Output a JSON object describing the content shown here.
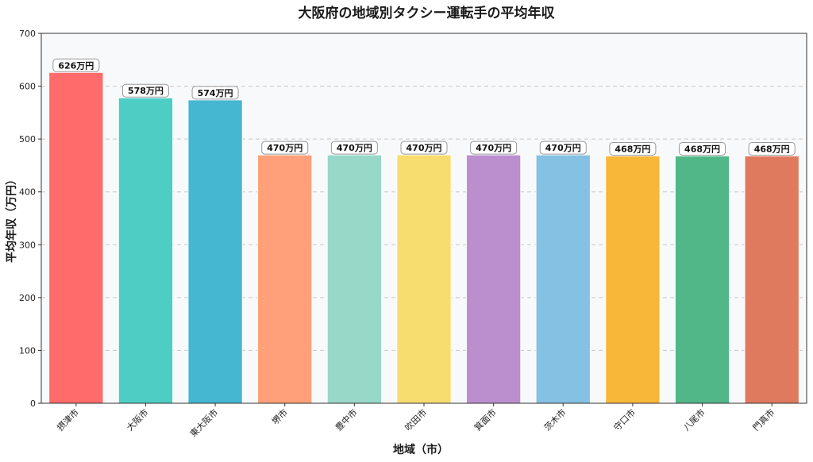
{
  "chart_data": {
    "type": "bar",
    "title": "大阪府の地域別タクシー運転手の平均年収",
    "xlabel": "地域（市）",
    "ylabel": "平均年収（万円）",
    "ylim": [
      0,
      700
    ],
    "yticks": [
      0,
      100,
      200,
      300,
      400,
      500,
      600,
      700
    ],
    "grid": true,
    "categories": [
      "摂津市",
      "大阪市",
      "東大阪市",
      "堺市",
      "豊中市",
      "吹田市",
      "箕面市",
      "茨木市",
      "守口市",
      "八尾市",
      "門真市"
    ],
    "values": [
      626,
      578,
      574,
      470,
      470,
      470,
      470,
      470,
      468,
      468,
      468
    ],
    "value_labels": [
      "626万円",
      "578万円",
      "574万円",
      "470万円",
      "470万円",
      "470万円",
      "470万円",
      "470万円",
      "468万円",
      "468万円",
      "468万円"
    ],
    "colors": [
      "#ff6b6b",
      "#4ecdc4",
      "#45b7d1",
      "#ffa07a",
      "#98d8c8",
      "#f7dc6f",
      "#bb8fce",
      "#85c1e2",
      "#f8b739",
      "#52b788",
      "#e07a5f"
    ],
    "plot_background": "#f8f9fa"
  }
}
